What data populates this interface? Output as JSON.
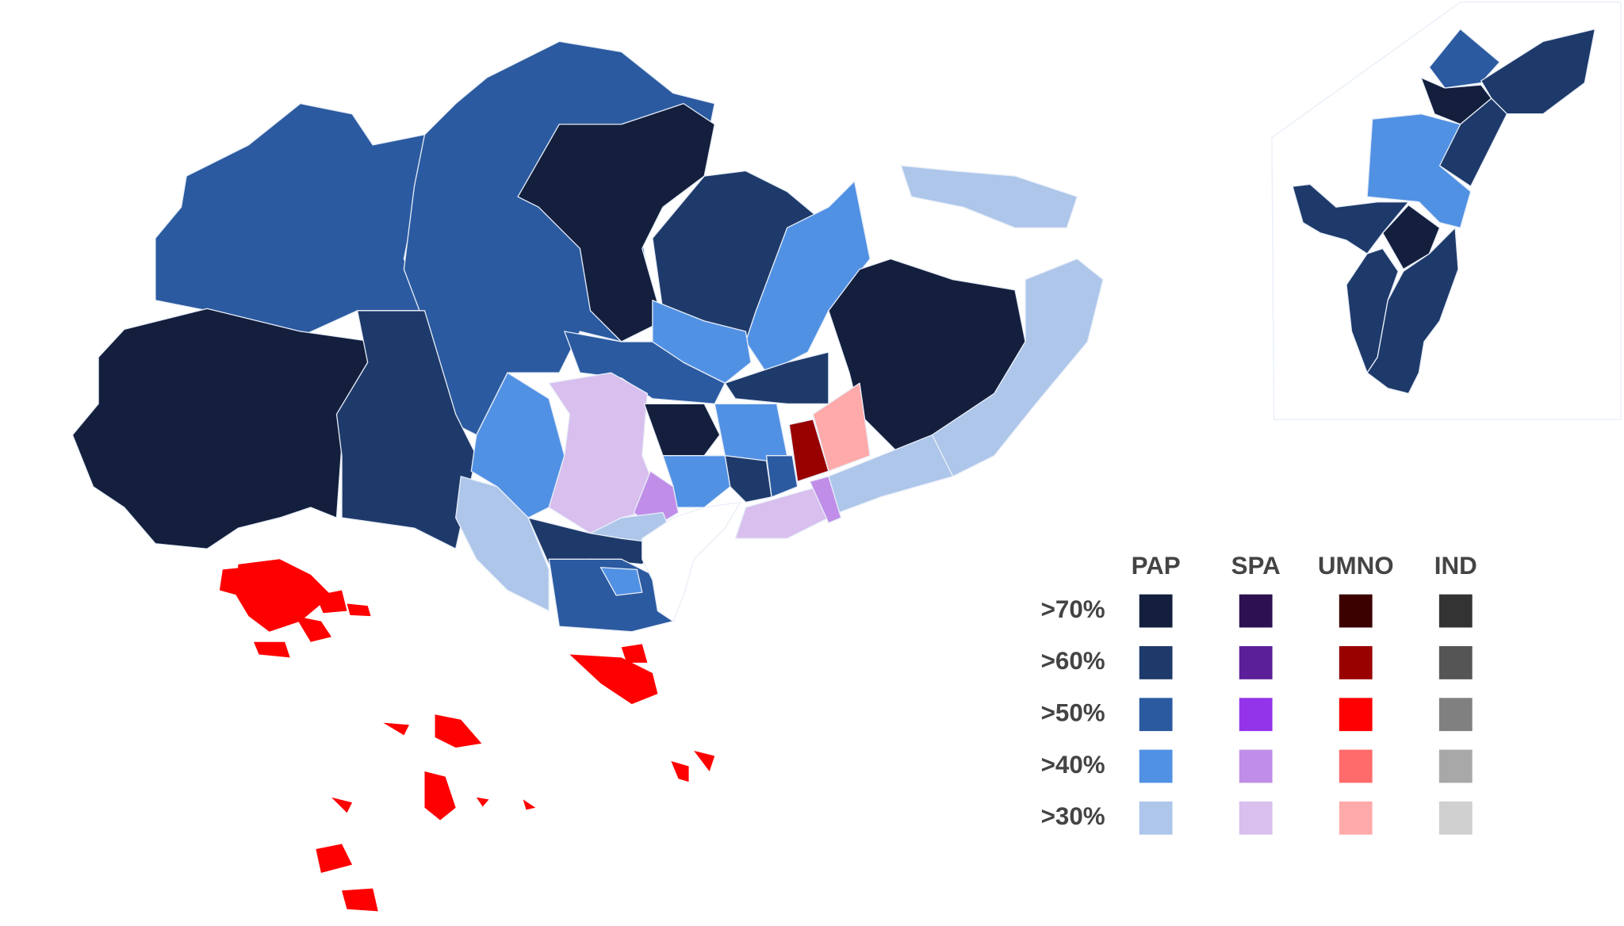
{
  "legend": {
    "parties": [
      "PAP",
      "SPA",
      "UMNO",
      "IND"
    ],
    "thresholds": [
      ">70%",
      ">60%",
      ">50%",
      ">40%",
      ">30%"
    ],
    "colors": [
      [
        "#131f3d",
        "#1e3a6a",
        "#2b5aa0",
        "#5191e4",
        "#adc6ea"
      ],
      [
        "#2d1050",
        "#5b1f99",
        "#9333ea",
        "#c08ee8",
        "#d8bfee"
      ],
      [
        "#3b0000",
        "#990000",
        "#ff0000",
        "#ff6b6b",
        "#ffaaaa"
      ],
      [
        "#333333",
        "#555555",
        "#808080",
        "#a8a8a8",
        "#d0d0d0"
      ]
    ]
  }
}
